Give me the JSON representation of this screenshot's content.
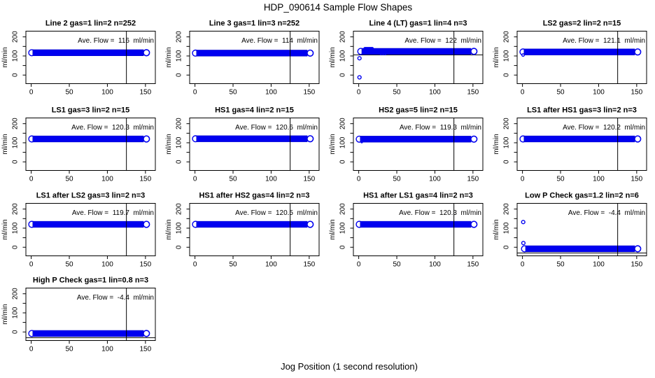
{
  "page": {
    "title": "HDP_090614  Sample Flow Shapes",
    "xlabel": "Jog Position (1 second resolution)",
    "background": "#ffffff",
    "text_color": "#000000"
  },
  "chart_data": {
    "type": "scatter",
    "title": "HDP_090614  Sample Flow Shapes",
    "xlabel": "Jog Position (1 second resolution)",
    "ylabel": "ml/min",
    "layout": {
      "rows": 4,
      "cols": 4,
      "grid": true,
      "xlim": [
        -7,
        163
      ],
      "ylim": [
        -45,
        230
      ],
      "x_ticks": [
        0,
        50,
        100,
        150
      ],
      "y_ticks": [
        0,
        50,
        100,
        150,
        200
      ],
      "y_tick_labels": [
        "0",
        "100",
        "200"
      ],
      "x_tick_labels": [
        "0",
        "50",
        "100",
        "150"
      ],
      "vline_x": 125,
      "band_x_start": 0,
      "band_x_end": 152
    },
    "colors": {
      "point_blue": "#0000f0",
      "point_blue_stroke": "#0000cd",
      "axis_black": "#000000"
    },
    "panels": [
      {
        "title": "Line 2 gas=1 lin=2 n=252",
        "ave_flow": 116,
        "ave_text": "Ave. Flow =  116  ml/min",
        "band": {
          "x0": 0,
          "x1": 152,
          "center": 117,
          "half": 16
        },
        "points": [],
        "bumps": [],
        "hline": null
      },
      {
        "title": "Line 3 gas=1 lin=3 n=252",
        "ave_flow": 114,
        "ave_text": "Ave. Flow =  114  ml/min",
        "band": {
          "x0": 0,
          "x1": 152,
          "center": 115,
          "half": 16
        },
        "points": [],
        "bumps": [],
        "hline": null
      },
      {
        "title": "Line 4 (LT) gas=1 lin=4 n=3",
        "ave_flow": 122,
        "ave_text": "Ave. Flow =  122  ml/min",
        "band": {
          "x0": 2,
          "x1": 152,
          "center": 124,
          "half": 16
        },
        "points": [
          {
            "x": 1,
            "y": 88,
            "r": 2.4
          },
          {
            "x": 1,
            "y": -12,
            "r": 2.4
          },
          {
            "x": 29,
            "y": 110,
            "r": 0.9
          },
          {
            "x": 32,
            "y": 110,
            "r": 0.9
          },
          {
            "x": 35,
            "y": 110,
            "r": 0.9
          }
        ],
        "bumps": [
          {
            "x0": 6,
            "x1": 20,
            "center": 138,
            "half": 9
          }
        ],
        "hline": 106
      },
      {
        "title": "LS2 gas=2 lin=2 n=15",
        "ave_flow": 121.1,
        "ave_text": "Ave. Flow =  121.1  ml/min",
        "band": {
          "x0": 0,
          "x1": 152,
          "center": 121,
          "half": 16
        },
        "points": [
          {
            "x": 0.8,
            "y": 105,
            "r": 1.8
          }
        ],
        "bumps": [],
        "hline": null
      },
      {
        "title": "LS1 gas=3 lin=2 n=15",
        "ave_flow": 120.3,
        "ave_text": "Ave. Flow =  120.3  ml/min",
        "band": {
          "x0": 0,
          "x1": 152,
          "center": 120,
          "half": 16
        },
        "points": [],
        "bumps": [],
        "hline": null
      },
      {
        "title": "HS1 gas=4 lin=2 n=15",
        "ave_flow": 120.6,
        "ave_text": "Ave. Flow =  120.6  ml/min",
        "band": {
          "x0": 0,
          "x1": 152,
          "center": 121,
          "half": 16
        },
        "points": [],
        "bumps": [],
        "hline": null
      },
      {
        "title": "HS2 gas=5 lin=2 n=15",
        "ave_flow": 119.3,
        "ave_text": "Ave. Flow =  119.3  ml/min",
        "band": {
          "x0": 0,
          "x1": 152,
          "center": 119,
          "half": 16
        },
        "points": [
          {
            "x": 4,
            "y": 103,
            "r": 0.9
          }
        ],
        "bumps": [],
        "hline": null
      },
      {
        "title": "LS1 after HS1 gas=3 lin=2 n=3",
        "ave_flow": 120.2,
        "ave_text": "Ave. Flow =  120.2  ml/min",
        "band": {
          "x0": 0,
          "x1": 152,
          "center": 120,
          "half": 16
        },
        "points": [],
        "bumps": [],
        "hline": null
      },
      {
        "title": "LS1 after LS2 gas=3 lin=2 n=3",
        "ave_flow": 119.7,
        "ave_text": "Ave. Flow =  119.7  ml/min",
        "band": {
          "x0": 0,
          "x1": 152,
          "center": 120,
          "half": 16
        },
        "points": [],
        "bumps": [],
        "hline": null
      },
      {
        "title": "HS1 after HS2 gas=4 lin=2 n=3",
        "ave_flow": 120.5,
        "ave_text": "Ave. Flow =  120.5  ml/min",
        "band": {
          "x0": 0,
          "x1": 152,
          "center": 120,
          "half": 16
        },
        "points": [],
        "bumps": [],
        "hline": null
      },
      {
        "title": "HS1 after LS1 gas=4 lin=2 n=3",
        "ave_flow": 120.3,
        "ave_text": "Ave. Flow =  120.3  ml/min",
        "band": {
          "x0": 0,
          "x1": 152,
          "center": 120,
          "half": 16
        },
        "points": [],
        "bumps": [],
        "hline": null
      },
      {
        "title": "Low P Check gas=1.2 lin=2 n=6",
        "ave_flow": -4.4,
        "ave_text": "Ave. Flow =  -4.4  ml/min",
        "band": {
          "x0": 2,
          "x1": 152,
          "center": -8,
          "half": 16
        },
        "points": [
          {
            "x": 1,
            "y": 132,
            "r": 2.4
          },
          {
            "x": 1.2,
            "y": 22,
            "r": 2.4
          }
        ],
        "bumps": [],
        "hline": -30
      },
      {
        "title": "High P Check gas=1 lin=0.8 n=3",
        "ave_flow": -4.4,
        "ave_text": "Ave. Flow =  -4.4  ml/min",
        "band": {
          "x0": 0,
          "x1": 152,
          "center": -8,
          "half": 16
        },
        "points": [],
        "bumps": [],
        "hline": -30
      }
    ]
  }
}
